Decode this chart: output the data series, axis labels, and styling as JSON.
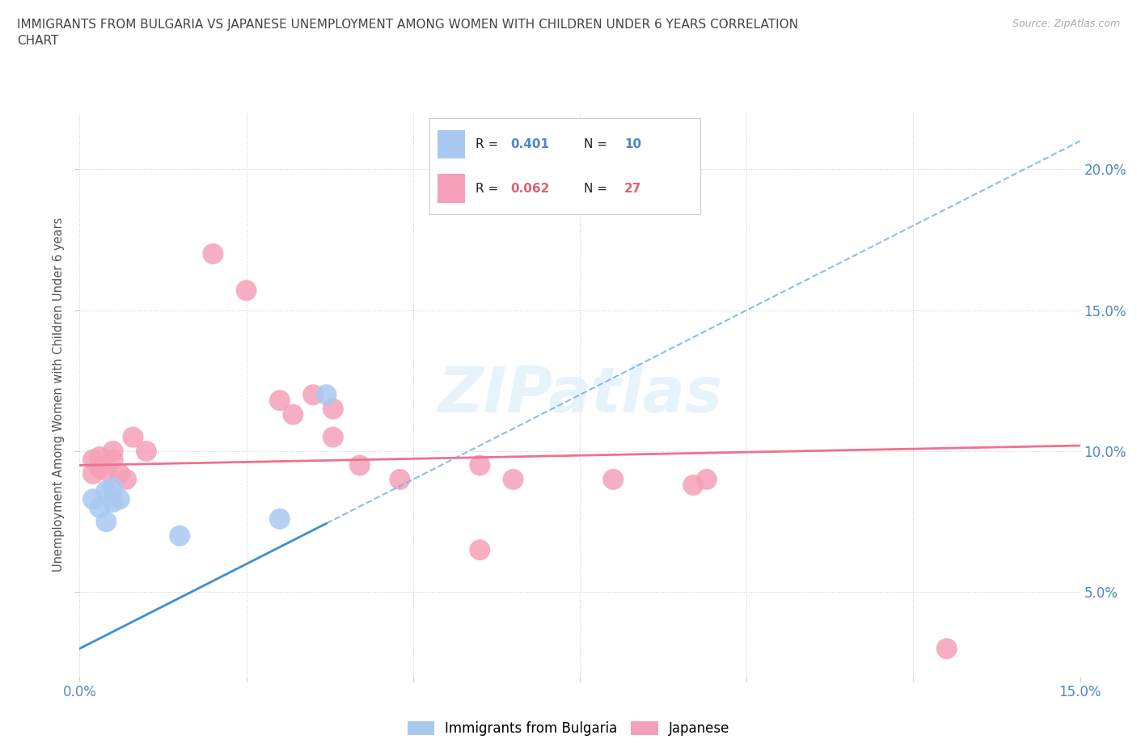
{
  "title": "IMMIGRANTS FROM BULGARIA VS JAPANESE UNEMPLOYMENT AMONG WOMEN WITH CHILDREN UNDER 6 YEARS CORRELATION\nCHART",
  "source": "Source: ZipAtlas.com",
  "ylabel": "Unemployment Among Women with Children Under 6 years",
  "xlim": [
    0.0,
    0.15
  ],
  "ylim": [
    0.02,
    0.22
  ],
  "xtick_positions": [
    0.0,
    0.025,
    0.05,
    0.075,
    0.1,
    0.125,
    0.15
  ],
  "xtick_labels": [
    "0.0%",
    "",
    "",
    "",
    "",
    "",
    "15.0%"
  ],
  "ytick_positions": [
    0.05,
    0.1,
    0.15,
    0.2
  ],
  "ytick_labels": [
    "5.0%",
    "10.0%",
    "15.0%",
    "20.0%"
  ],
  "watermark": "ZIPatlas",
  "blue_scatter_x": [
    0.002,
    0.003,
    0.004,
    0.004,
    0.005,
    0.005,
    0.006,
    0.015,
    0.03,
    0.037
  ],
  "blue_scatter_y": [
    0.083,
    0.08,
    0.086,
    0.075,
    0.087,
    0.082,
    0.083,
    0.07,
    0.076,
    0.12
  ],
  "pink_scatter_x": [
    0.002,
    0.002,
    0.003,
    0.003,
    0.004,
    0.005,
    0.005,
    0.006,
    0.007,
    0.008,
    0.01,
    0.02,
    0.025,
    0.03,
    0.032,
    0.035,
    0.038,
    0.038,
    0.042,
    0.048,
    0.06,
    0.06,
    0.065,
    0.08,
    0.092,
    0.094,
    0.13
  ],
  "pink_scatter_y": [
    0.092,
    0.097,
    0.094,
    0.098,
    0.093,
    0.097,
    0.1,
    0.092,
    0.09,
    0.105,
    0.1,
    0.17,
    0.157,
    0.118,
    0.113,
    0.12,
    0.105,
    0.115,
    0.095,
    0.09,
    0.095,
    0.065,
    0.09,
    0.09,
    0.088,
    0.09,
    0.03
  ],
  "blue_R": 0.401,
  "blue_N": 10,
  "pink_R": 0.062,
  "pink_N": 27,
  "blue_line_color": "#6aaee8",
  "blue_line_solid_color": "#4090d0",
  "pink_line_color": "#f07090",
  "blue_scatter_color": "#a8c8f0",
  "pink_scatter_color": "#f5a0b8",
  "bg_color": "#ffffff",
  "grid_color": "#d0d0d0",
  "title_color": "#444444",
  "axis_label_color": "#555555",
  "tick_label_color_blue": "#4f86c6",
  "tick_label_color_pink": "#e06070",
  "legend_text_color_black": "#222222"
}
